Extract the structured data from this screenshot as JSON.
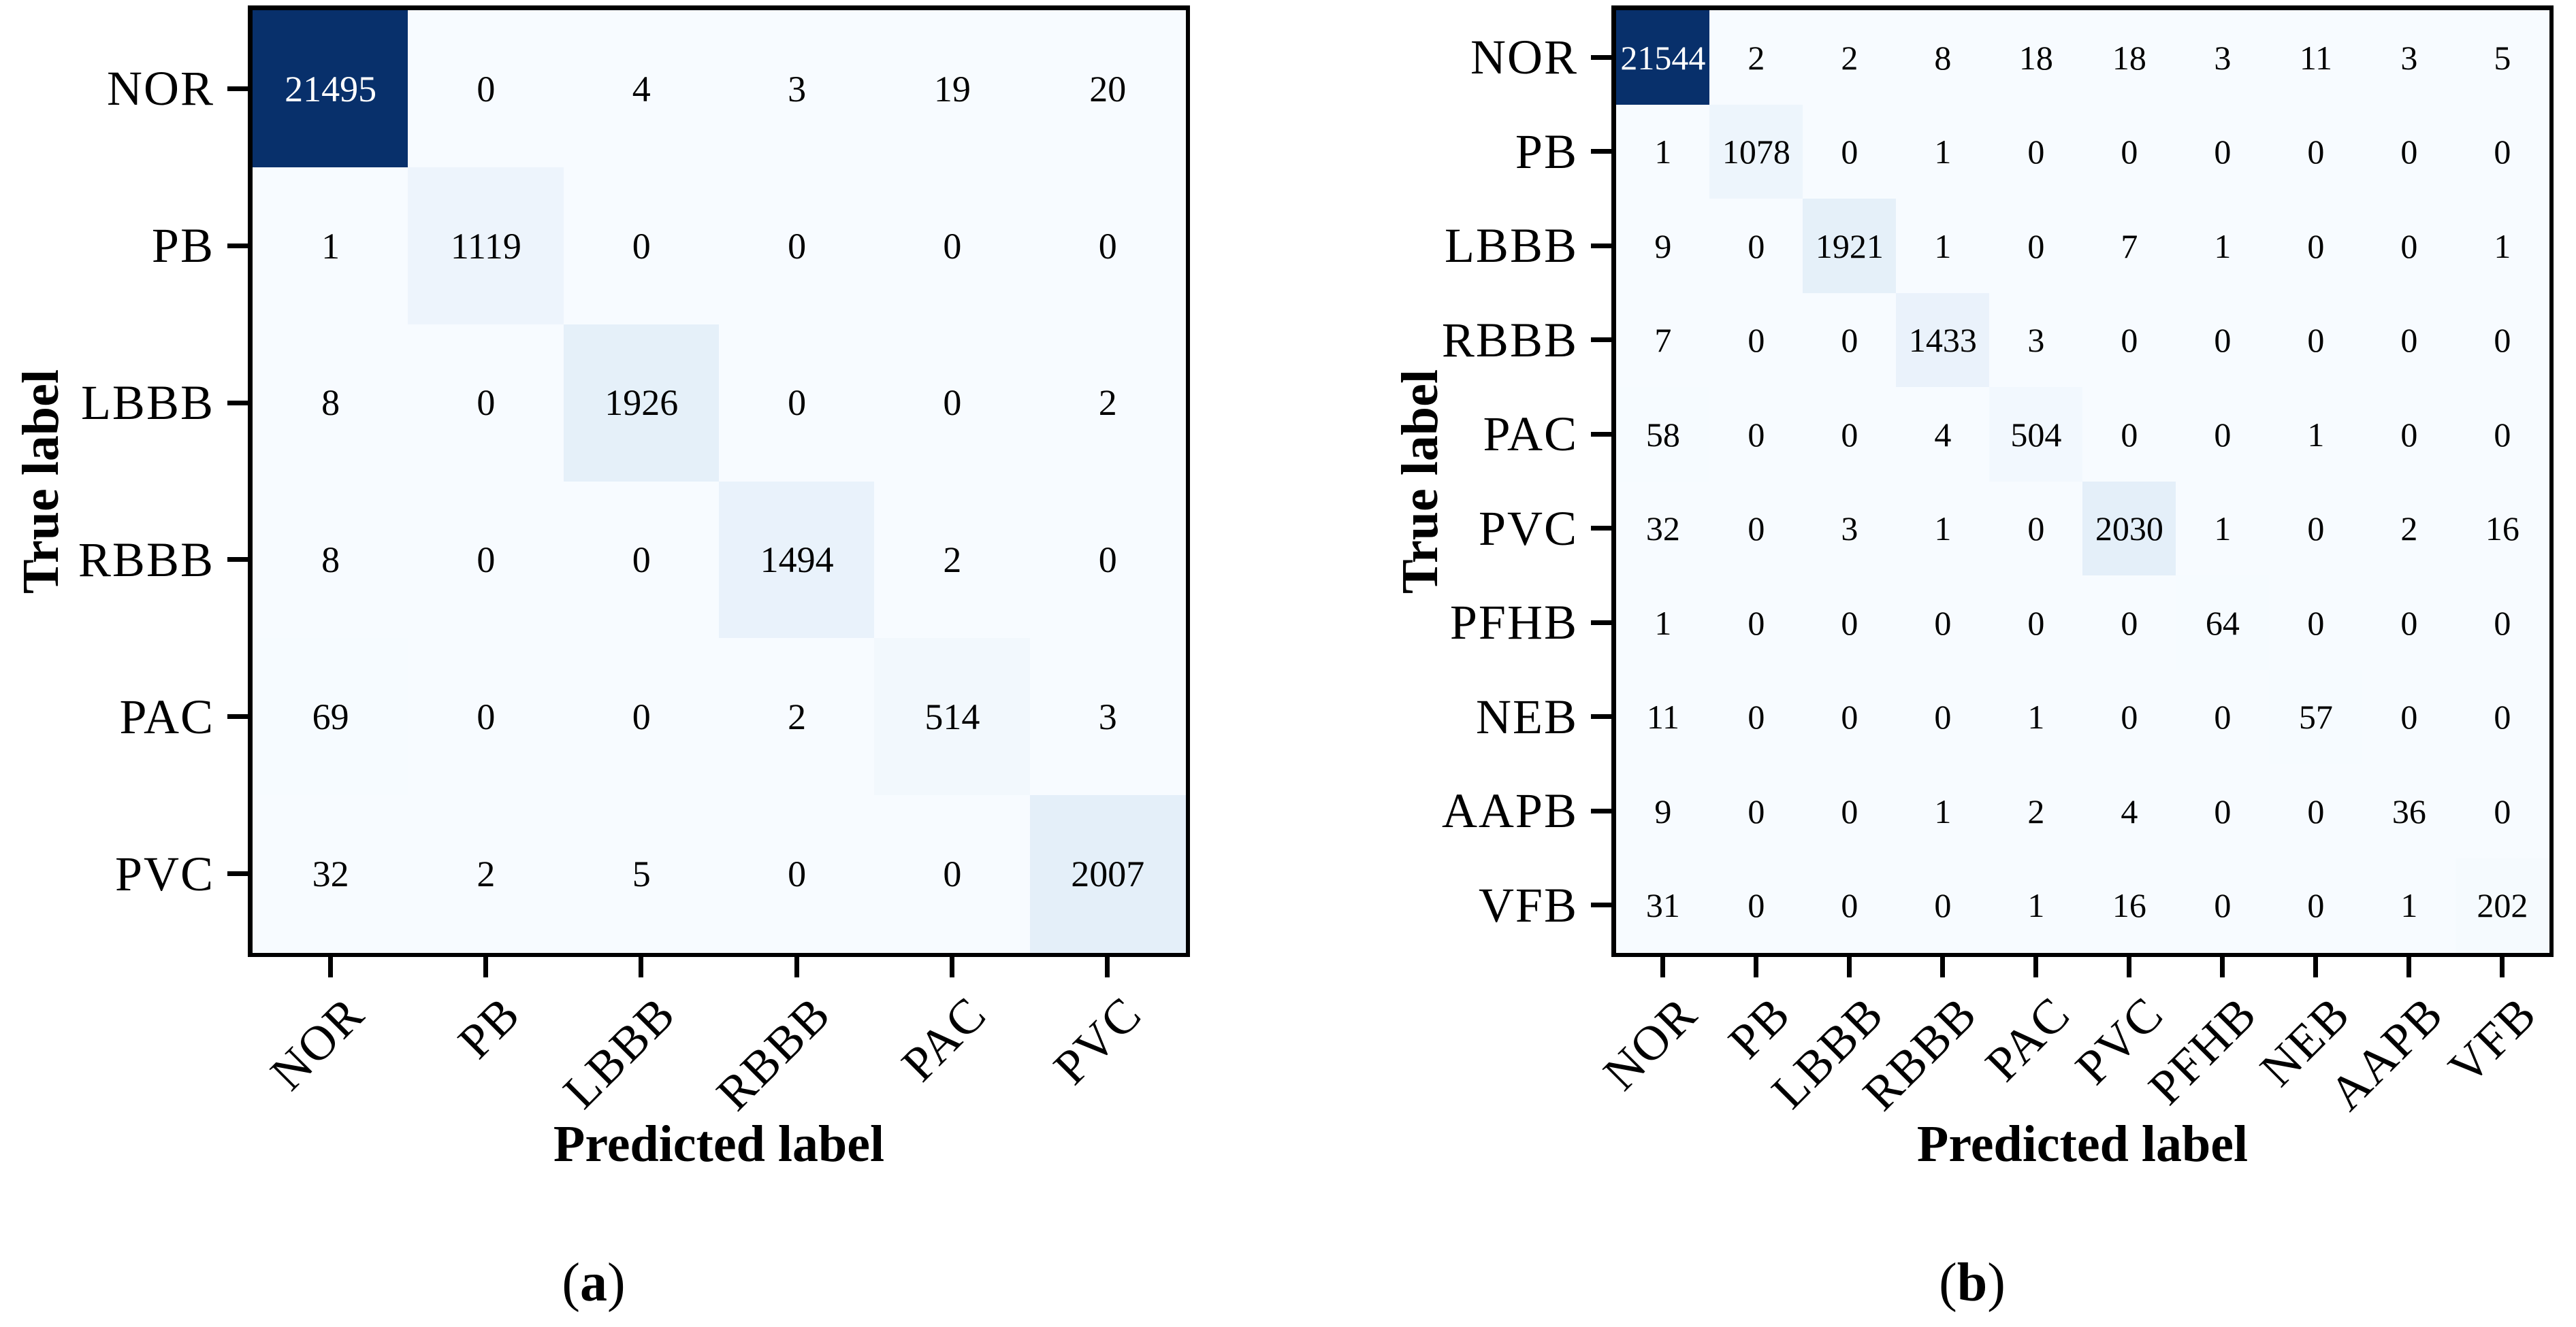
{
  "chart_data": [
    {
      "type": "heatmap",
      "panel": "a",
      "colormap": "Blues",
      "xlabel": "Predicted label",
      "ylabel": "True label",
      "caption": "a",
      "labels": [
        "NOR",
        "PB",
        "LBBB",
        "RBBB",
        "PAC",
        "PVC"
      ],
      "matrix": [
        [
          21495,
          0,
          4,
          3,
          19,
          20
        ],
        [
          1,
          1119,
          0,
          0,
          0,
          0
        ],
        [
          8,
          0,
          1926,
          0,
          0,
          2
        ],
        [
          8,
          0,
          0,
          1494,
          2,
          0
        ],
        [
          69,
          0,
          0,
          2,
          514,
          3
        ],
        [
          32,
          2,
          5,
          0,
          0,
          2007
        ]
      ],
      "vmin": 0,
      "vmax": 21495
    },
    {
      "type": "heatmap",
      "panel": "b",
      "colormap": "Blues",
      "xlabel": "Predicted label",
      "ylabel": "True label",
      "caption": "b",
      "labels": [
        "NOR",
        "PB",
        "LBBB",
        "RBBB",
        "PAC",
        "PVC",
        "PFHB",
        "NEB",
        "AAPB",
        "VFB"
      ],
      "matrix": [
        [
          21544,
          2,
          2,
          8,
          18,
          18,
          3,
          11,
          3,
          5
        ],
        [
          1,
          1078,
          0,
          1,
          0,
          0,
          0,
          0,
          0,
          0
        ],
        [
          9,
          0,
          1921,
          1,
          0,
          7,
          1,
          0,
          0,
          1
        ],
        [
          7,
          0,
          0,
          1433,
          3,
          0,
          0,
          0,
          0,
          0
        ],
        [
          58,
          0,
          0,
          4,
          504,
          0,
          0,
          1,
          0,
          0
        ],
        [
          32,
          0,
          3,
          1,
          0,
          2030,
          1,
          0,
          2,
          16
        ],
        [
          1,
          0,
          0,
          0,
          0,
          0,
          64,
          0,
          0,
          0
        ],
        [
          11,
          0,
          0,
          0,
          1,
          0,
          0,
          57,
          0,
          0
        ],
        [
          9,
          0,
          0,
          1,
          2,
          4,
          0,
          0,
          36,
          0
        ],
        [
          31,
          0,
          0,
          0,
          1,
          16,
          0,
          0,
          1,
          202
        ]
      ],
      "vmin": 0,
      "vmax": 21544
    }
  ],
  "caption_wrap": {
    "open": "(",
    "close": ")"
  },
  "colors": {
    "background": "#ffffff",
    "frame": "#000000",
    "cell_text_dark": "#000000",
    "cell_text_light": "#ffffff",
    "blues_stops": [
      "#f7fbff",
      "#deebf7",
      "#c6dbef",
      "#9ecae1",
      "#6baed6",
      "#4292c6",
      "#2171b5",
      "#08519c",
      "#08306b"
    ]
  }
}
